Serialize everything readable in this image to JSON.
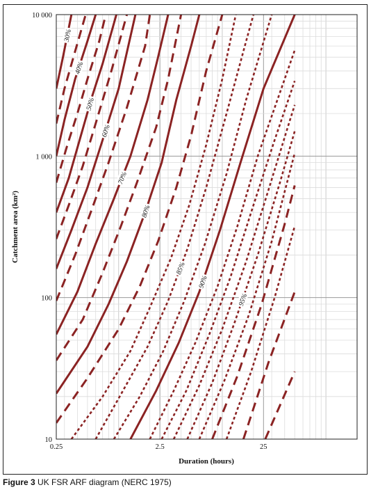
{
  "caption": {
    "figure_label": "Figure 3",
    "text": "UK FSR ARF diagram (NERC 1975)"
  },
  "chart_data": {
    "type": "line",
    "title": "",
    "xlabel": "Duration (hours)",
    "ylabel": "Catchment area (km²)",
    "x_scale": "log",
    "y_scale": "log",
    "xlim": [
      0.25,
      200
    ],
    "ylim": [
      10,
      10000
    ],
    "x_ticks": [
      {
        "value": 0.25,
        "label": "0.25"
      },
      {
        "value": 2.5,
        "label": "2.5"
      },
      {
        "value": 25,
        "label": "25"
      }
    ],
    "y_ticks": [
      {
        "value": 10,
        "label": "10"
      },
      {
        "value": 100,
        "label": "100"
      },
      {
        "value": 1000,
        "label": "1 000"
      },
      {
        "value": 10000,
        "label": "10 000"
      }
    ],
    "grid": true,
    "line_color": "#8b2323",
    "series": [
      {
        "name": "30%",
        "style": "solid",
        "points": [
          [
            0.25,
            3000
          ],
          [
            0.29,
            5000
          ],
          [
            0.35,
            10000
          ]
        ]
      },
      {
        "name": "",
        "style": "dashed",
        "points": [
          [
            0.25,
            1700
          ],
          [
            0.3,
            3000
          ],
          [
            0.38,
            5500
          ],
          [
            0.48,
            10000
          ]
        ]
      },
      {
        "name": "40%",
        "style": "solid",
        "points": [
          [
            0.25,
            1000
          ],
          [
            0.3,
            1800
          ],
          [
            0.38,
            3500
          ],
          [
            0.5,
            6500
          ],
          [
            0.6,
            10000
          ]
        ]
      },
      {
        "name": "",
        "style": "dashed",
        "points": [
          [
            0.25,
            650
          ],
          [
            0.32,
            1200
          ],
          [
            0.4,
            2000
          ],
          [
            0.5,
            3500
          ],
          [
            0.65,
            6500
          ],
          [
            0.75,
            10000
          ]
        ]
      },
      {
        "name": "50%",
        "style": "solid",
        "points": [
          [
            0.25,
            400
          ],
          [
            0.33,
            700
          ],
          [
            0.42,
            1300
          ],
          [
            0.55,
            2600
          ],
          [
            0.7,
            4500
          ],
          [
            0.95,
            10000
          ]
        ]
      },
      {
        "name": "",
        "style": "dashed",
        "points": [
          [
            0.25,
            260
          ],
          [
            0.33,
            450
          ],
          [
            0.45,
            850
          ],
          [
            0.6,
            1700
          ],
          [
            0.85,
            4000
          ],
          [
            1.2,
            10000
          ]
        ]
      },
      {
        "name": "60%",
        "style": "solid",
        "points": [
          [
            0.25,
            160
          ],
          [
            0.35,
            300
          ],
          [
            0.5,
            600
          ],
          [
            0.7,
            1300
          ],
          [
            1.0,
            3000
          ],
          [
            1.45,
            10000
          ]
        ]
      },
      {
        "name": "",
        "style": "dashed",
        "points": [
          [
            0.25,
            95
          ],
          [
            0.38,
            200
          ],
          [
            0.55,
            420
          ],
          [
            0.8,
            900
          ],
          [
            1.2,
            2200
          ],
          [
            1.8,
            6000
          ],
          [
            2.0,
            10000
          ]
        ]
      },
      {
        "name": "70%",
        "style": "solid",
        "points": [
          [
            0.25,
            55
          ],
          [
            0.4,
            110
          ],
          [
            0.6,
            240
          ],
          [
            0.9,
            500
          ],
          [
            1.3,
            1000
          ],
          [
            1.9,
            2500
          ],
          [
            2.4,
            5000
          ],
          [
            3.0,
            10000
          ]
        ]
      },
      {
        "name": "",
        "style": "dashed",
        "points": [
          [
            0.25,
            36
          ],
          [
            0.45,
            70
          ],
          [
            0.7,
            150
          ],
          [
            1.05,
            320
          ],
          [
            1.5,
            650
          ],
          [
            2.3,
            1600
          ],
          [
            3.0,
            3500
          ],
          [
            4.0,
            10000
          ]
        ]
      },
      {
        "name": "80%",
        "style": "solid",
        "points": [
          [
            0.25,
            21
          ],
          [
            0.5,
            45
          ],
          [
            0.8,
            90
          ],
          [
            1.2,
            180
          ],
          [
            1.8,
            400
          ],
          [
            2.6,
            900
          ],
          [
            3.6,
            2500
          ],
          [
            5.0,
            6000
          ],
          [
            6.0,
            10000
          ]
        ]
      },
      {
        "name": "",
        "style": "dashed",
        "points": [
          [
            0.25,
            13
          ],
          [
            0.5,
            27
          ],
          [
            1.0,
            60
          ],
          [
            1.6,
            120
          ],
          [
            2.4,
            250
          ],
          [
            3.6,
            600
          ],
          [
            5.0,
            1400
          ],
          [
            7.0,
            4000
          ],
          [
            10.0,
            10000
          ]
        ]
      },
      {
        "name": "",
        "style": "dotted",
        "points": [
          [
            0.35,
            10
          ],
          [
            0.7,
            20
          ],
          [
            1.3,
            42
          ],
          [
            2.0,
            85
          ],
          [
            3.2,
            190
          ],
          [
            4.8,
            450
          ],
          [
            7.0,
            1200
          ],
          [
            10.0,
            3500
          ],
          [
            13.5,
            10000
          ]
        ]
      },
      {
        "name": "85%",
        "style": "dotted",
        "points": [
          [
            0.6,
            10
          ],
          [
            1.1,
            22
          ],
          [
            1.9,
            45
          ],
          [
            3.0,
            95
          ],
          [
            4.6,
            220
          ],
          [
            7.0,
            600
          ],
          [
            11.0,
            2000
          ],
          [
            17.0,
            6500
          ],
          [
            20.0,
            10000
          ]
        ]
      },
      {
        "name": "",
        "style": "dotted",
        "points": [
          [
            0.9,
            10
          ],
          [
            1.6,
            20
          ],
          [
            2.7,
            42
          ],
          [
            4.3,
            95
          ],
          [
            6.8,
            240
          ],
          [
            11.0,
            750
          ],
          [
            17.0,
            2500
          ],
          [
            30.0,
            10000
          ]
        ]
      },
      {
        "name": "90%",
        "style": "solid",
        "points": [
          [
            1.3,
            10
          ],
          [
            2.3,
            22
          ],
          [
            3.8,
            48
          ],
          [
            6.0,
            110
          ],
          [
            9.5,
            300
          ],
          [
            15.0,
            900
          ],
          [
            25.0,
            3000
          ],
          [
            50.0,
            10000
          ]
        ]
      },
      {
        "name": "",
        "style": "dotted",
        "points": [
          [
            2.0,
            10
          ],
          [
            3.4,
            22
          ],
          [
            5.5,
            48
          ],
          [
            9.0,
            120
          ],
          [
            14.0,
            320
          ],
          [
            22.0,
            1000
          ],
          [
            40.0,
            3500
          ],
          [
            50.0,
            5600
          ]
        ]
      },
      {
        "name": "",
        "style": "dotted",
        "points": [
          [
            2.6,
            10
          ],
          [
            4.5,
            22
          ],
          [
            7.5,
            55
          ],
          [
            12.0,
            140
          ],
          [
            20.0,
            450
          ],
          [
            32.0,
            1300
          ],
          [
            50.0,
            3400
          ]
        ]
      },
      {
        "name": "",
        "style": "dotted",
        "points": [
          [
            3.4,
            10
          ],
          [
            6.0,
            24
          ],
          [
            10.0,
            60
          ],
          [
            17.0,
            180
          ],
          [
            28.0,
            580
          ],
          [
            45.0,
            1800
          ],
          [
            50.0,
            2300
          ]
        ]
      },
      {
        "name": "95%",
        "style": "dotted",
        "points": [
          [
            4.6,
            10
          ],
          [
            8.0,
            25
          ],
          [
            13.0,
            65
          ],
          [
            22.0,
            200
          ],
          [
            36.0,
            650
          ],
          [
            50.0,
            1500
          ]
        ]
      },
      {
        "name": "",
        "style": "dotted",
        "points": [
          [
            6.0,
            10
          ],
          [
            10.5,
            26
          ],
          [
            18.0,
            75
          ],
          [
            30.0,
            250
          ],
          [
            50.0,
            1050
          ]
        ]
      },
      {
        "name": "",
        "style": "dashed",
        "points": [
          [
            8.0,
            10
          ],
          [
            14.0,
            28
          ],
          [
            24.0,
            90
          ],
          [
            40.0,
            330
          ],
          [
            50.0,
            620
          ]
        ]
      },
      {
        "name": "",
        "style": "dotted",
        "points": [
          [
            11.0,
            10
          ],
          [
            19.0,
            30
          ],
          [
            32.0,
            100
          ],
          [
            50.0,
            320
          ]
        ]
      },
      {
        "name": "",
        "style": "dashed",
        "points": [
          [
            16.0,
            10
          ],
          [
            28.0,
            35
          ],
          [
            50.0,
            110
          ]
        ]
      },
      {
        "name": "",
        "style": "dashed",
        "points": [
          [
            26.0,
            10
          ],
          [
            50.0,
            30
          ]
        ]
      }
    ]
  }
}
